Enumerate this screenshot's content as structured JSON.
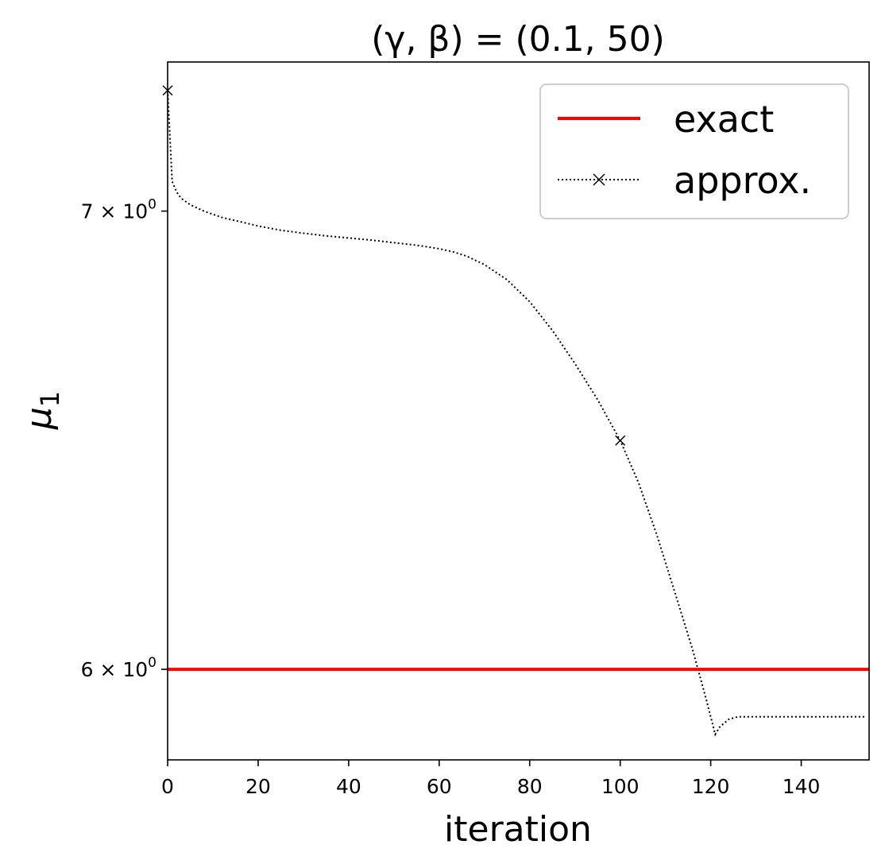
{
  "chart_data": {
    "type": "line",
    "title": "(γ, β) = (0.1, 50)",
    "xlabel": "iteration",
    "ylabel": "μ",
    "ylabel_sub": "1",
    "yscale": "log",
    "xlim": [
      0,
      155
    ],
    "ylim": [
      5.82,
      7.36
    ],
    "xticks": [
      0,
      20,
      40,
      60,
      80,
      100,
      120,
      140
    ],
    "xtick_labels": [
      "0",
      "20",
      "40",
      "60",
      "80",
      "100",
      "120",
      "140"
    ],
    "yticks": [
      {
        "value": 7,
        "base": "7 × 10",
        "exp": "0"
      },
      {
        "value": 6,
        "base": "6 × 10",
        "exp": "0"
      }
    ],
    "grid": false,
    "legend": {
      "position": "top-right",
      "entries": [
        "exact",
        "approx."
      ]
    },
    "series": [
      {
        "name": "exact",
        "color": "#ff0000",
        "style": "solid",
        "value": 6.0
      },
      {
        "name": "approx.",
        "color": "#000000",
        "style": "dotted",
        "marker": "x",
        "marker_every": 100,
        "x": [
          0,
          1,
          2,
          3,
          5,
          8,
          12,
          16,
          20,
          25,
          30,
          35,
          40,
          45,
          50,
          55,
          60,
          63,
          66,
          70,
          75,
          80,
          85,
          90,
          95,
          100,
          104,
          108,
          112,
          116,
          119,
          121,
          122,
          124,
          126,
          130,
          135,
          140,
          145,
          150,
          154
        ],
        "y": [
          7.29,
          7.07,
          7.045,
          7.03,
          7.015,
          7.0,
          6.985,
          6.975,
          6.965,
          6.955,
          6.948,
          6.942,
          6.937,
          6.932,
          6.926,
          6.92,
          6.912,
          6.905,
          6.895,
          6.875,
          6.84,
          6.79,
          6.725,
          6.65,
          6.57,
          6.48,
          6.39,
          6.28,
          6.16,
          6.04,
          5.94,
          5.87,
          5.885,
          5.9,
          5.905,
          5.905,
          5.905,
          5.905,
          5.905,
          5.905,
          5.905
        ]
      }
    ]
  }
}
